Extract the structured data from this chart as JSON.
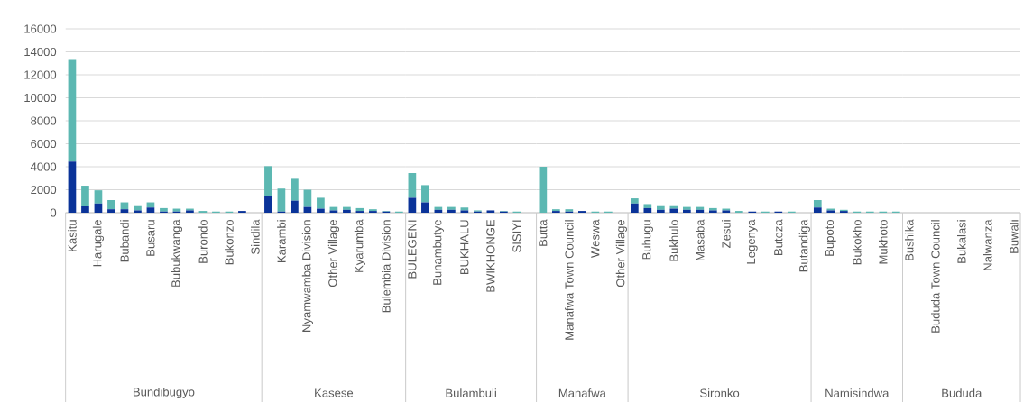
{
  "chart_data": [
    {
      "type": "bar",
      "stacked": true,
      "grid": "y",
      "xlabel": "Bundibugyo",
      "ylim": [
        0,
        16000
      ],
      "yticks": [
        0,
        2000,
        4000,
        6000,
        8000,
        10000,
        12000,
        14000,
        16000
      ],
      "categories": [
        "Kasitu",
        null,
        "Harugale",
        null,
        "Bubandi",
        null,
        "Busaru",
        null,
        "Bubukwanga",
        null,
        "Burondo",
        null,
        "Bukonzo",
        null,
        "Sindila"
      ],
      "series": [
        {
          "color": "#0a3399",
          "values": [
            4450,
            600,
            800,
            300,
            300,
            200,
            450,
            100,
            100,
            200,
            0,
            0,
            0,
            150,
            0
          ]
        },
        {
          "color": "#5cb8b2",
          "values": [
            8850,
            1750,
            1150,
            800,
            600,
            450,
            450,
            300,
            250,
            150,
            150,
            100,
            100,
            0,
            0
          ]
        }
      ]
    },
    {
      "type": "bar",
      "stacked": true,
      "grid": "y",
      "tick_labels": "x",
      "xlabel": "Kasese",
      "ylim": [
        0,
        16000
      ],
      "yticks": [
        0,
        2000,
        4000,
        6000,
        8000,
        10000,
        12000,
        14000,
        16000
      ],
      "categories": [
        null,
        "Karambi",
        null,
        "Nyamwamba Division",
        null,
        "Other Village",
        null,
        "Kyarumba",
        null,
        "Bulembia Division",
        null
      ],
      "series": [
        {
          "color": "#0a3399",
          "values": [
            1450,
            100,
            1050,
            500,
            350,
            200,
            250,
            150,
            150,
            100,
            0
          ]
        },
        {
          "color": "#5cb8b2",
          "values": [
            2600,
            2000,
            1900,
            1500,
            950,
            300,
            250,
            250,
            150,
            50,
            100
          ]
        }
      ]
    },
    {
      "type": "bar",
      "stacked": true,
      "grid": "y",
      "tick_labels": "x",
      "xlabel": "Bulambuli",
      "ylim": [
        0,
        16000
      ],
      "yticks": [
        0,
        2000,
        4000,
        6000,
        8000,
        10000,
        12000,
        14000,
        16000
      ],
      "categories": [
        "BULEGENI",
        null,
        "Bunambutye",
        null,
        "BUKHALU",
        null,
        "BWIKHONGE",
        null,
        "SISIYI",
        null
      ],
      "series": [
        {
          "color": "#0a3399",
          "values": [
            1300,
            900,
            250,
            250,
            200,
            100,
            200,
            100,
            0,
            0
          ]
        },
        {
          "color": "#5cb8b2",
          "values": [
            2150,
            1500,
            250,
            250,
            250,
            100,
            0,
            50,
            100,
            0
          ]
        }
      ]
    },
    {
      "type": "bar",
      "stacked": true,
      "grid": "y",
      "tick_labels": "x",
      "xlabel": "Manafwa",
      "ylim": [
        0,
        16000
      ],
      "yticks": [
        0,
        2000,
        4000,
        6000,
        8000,
        10000,
        12000,
        14000,
        16000
      ],
      "categories": [
        "Butta",
        null,
        "Manafwa Town Council",
        null,
        "Weswa",
        null,
        "Other Village"
      ],
      "series": [
        {
          "color": "#0a3399",
          "values": [
            0,
            150,
            100,
            150,
            0,
            0,
            0
          ]
        },
        {
          "color": "#5cb8b2",
          "values": [
            4000,
            150,
            200,
            0,
            100,
            100,
            0
          ]
        }
      ]
    },
    {
      "type": "bar",
      "stacked": true,
      "grid": "y",
      "tick_labels": "x",
      "xlabel": "Sironko",
      "ylim": [
        0,
        16000
      ],
      "yticks": [
        0,
        2000,
        4000,
        6000,
        8000,
        10000,
        12000,
        14000,
        16000
      ],
      "categories": [
        null,
        "Buhugu",
        null,
        "Bukhulo",
        null,
        "Masaba",
        null,
        "Zesui",
        null,
        "Legenya",
        null,
        "Buteza",
        null,
        "Butandiga"
      ],
      "series": [
        {
          "color": "#0a3399",
          "values": [
            800,
            400,
            250,
            350,
            250,
            250,
            200,
            200,
            0,
            100,
            0,
            100,
            0,
            0
          ]
        },
        {
          "color": "#5cb8b2",
          "values": [
            450,
            350,
            400,
            300,
            250,
            250,
            200,
            150,
            150,
            0,
            100,
            0,
            100,
            0
          ]
        }
      ]
    },
    {
      "type": "bar",
      "stacked": true,
      "grid": "y",
      "tick_labels": "x",
      "xlabel": "Namisindwa",
      "ylim": [
        0,
        16000
      ],
      "yticks": [
        0,
        2000,
        4000,
        6000,
        8000,
        10000,
        12000,
        14000,
        16000
      ],
      "categories": [
        null,
        "Bupoto",
        null,
        "Bukokho",
        null,
        "Mukhoto",
        null
      ],
      "series": [
        {
          "color": "#0a3399",
          "values": [
            450,
            200,
            150,
            0,
            0,
            0,
            0
          ]
        },
        {
          "color": "#5cb8b2",
          "values": [
            650,
            150,
            100,
            100,
            100,
            100,
            100
          ]
        }
      ]
    },
    {
      "type": "bar",
      "stacked": true,
      "grid": "y",
      "tick_labels": "x",
      "xlabel": "Bududa",
      "ylim": [
        0,
        16000
      ],
      "yticks": [
        0,
        2000,
        4000,
        6000,
        8000,
        10000,
        12000,
        14000,
        16000
      ],
      "categories": [
        "Bushika",
        null,
        "Bududa Town Council",
        null,
        "Bukalasi",
        null,
        "Nalwanza",
        null,
        "Buwali"
      ],
      "series": [
        {
          "color": "#0a3399",
          "values": [
            0,
            0,
            0,
            0,
            0,
            0,
            0,
            0,
            0
          ]
        },
        {
          "color": "#5cb8b2",
          "values": [
            0,
            0,
            0,
            0,
            0,
            0,
            0,
            0,
            0
          ]
        }
      ]
    }
  ]
}
